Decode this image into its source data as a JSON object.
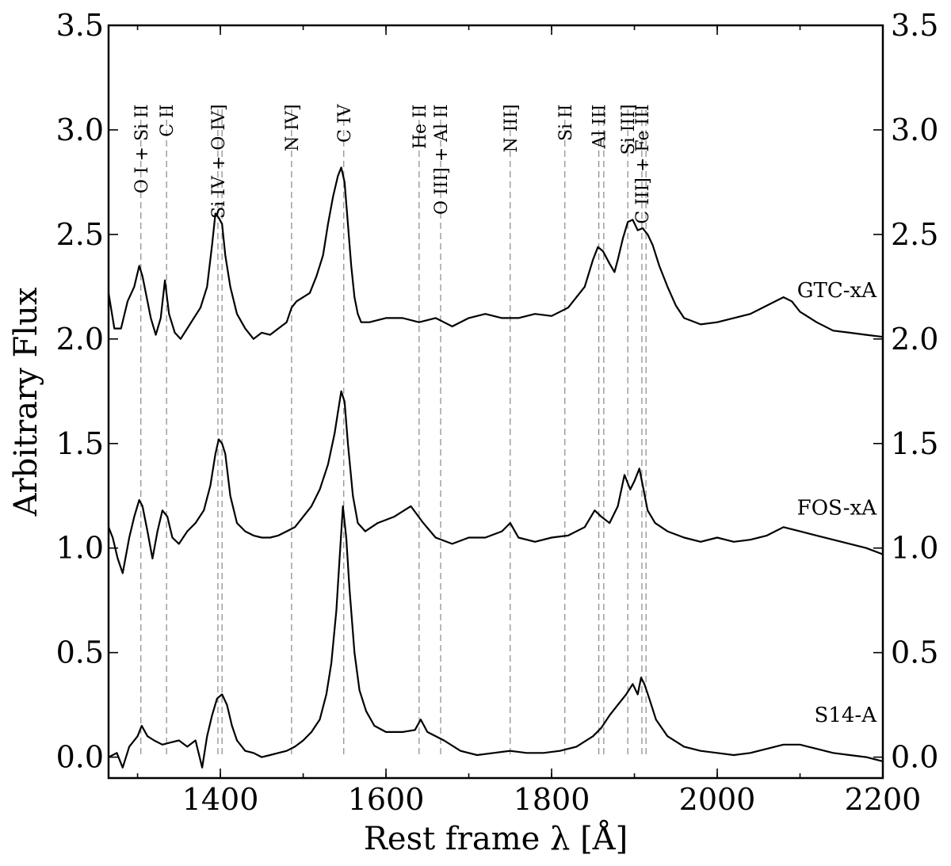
{
  "chart_data": {
    "type": "line",
    "xlabel": "Rest frame λ [Å]",
    "ylabel": "Arbitrary Flux",
    "xlim": [
      1265,
      2200
    ],
    "ylim": [
      -0.1,
      3.5
    ],
    "x_ticks": [
      1400,
      1600,
      1800,
      2000,
      2200
    ],
    "x_tick_labels": [
      "1400",
      "1600",
      "1800",
      "2000",
      "2200"
    ],
    "y_ticks": [
      0.0,
      0.5,
      1.0,
      1.5,
      2.0,
      2.5,
      3.0,
      3.5
    ],
    "y_tick_labels": [
      "0.0",
      "0.5",
      "1.0",
      "1.5",
      "2.0",
      "2.5",
      "3.0",
      "3.5"
    ],
    "y_ticks_right": true,
    "grid": false,
    "line_markers": [
      {
        "label": "O I + Si II",
        "x": 1304
      },
      {
        "label": "C II",
        "x": 1335
      },
      {
        "label": "Si IV + O IV]",
        "x": 1397
      },
      {
        "label": "",
        "x": 1402
      },
      {
        "label": "N IV]",
        "x": 1486
      },
      {
        "label": "C IV",
        "x": 1549
      },
      {
        "label": "He II",
        "x": 1640
      },
      {
        "label": "O III] + Al II",
        "x": 1666
      },
      {
        "label": "N III]",
        "x": 1750
      },
      {
        "label": "Si II",
        "x": 1816
      },
      {
        "label": "Al III",
        "x": 1857
      },
      {
        "label": "",
        "x": 1863
      },
      {
        "label": "Si III]",
        "x": 1892
      },
      {
        "label": "C III] + Fe III",
        "x": 1909
      },
      {
        "label": "",
        "x": 1914
      }
    ],
    "series": [
      {
        "name": "GTC-xA",
        "x": [
          1265,
          1272,
          1280,
          1288,
          1296,
          1302,
          1306,
          1310,
          1316,
          1322,
          1328,
          1333,
          1338,
          1345,
          1352,
          1360,
          1368,
          1376,
          1384,
          1390,
          1394,
          1398,
          1402,
          1406,
          1412,
          1420,
          1430,
          1440,
          1450,
          1460,
          1470,
          1480,
          1486,
          1492,
          1500,
          1508,
          1516,
          1524,
          1530,
          1536,
          1542,
          1546,
          1550,
          1554,
          1558,
          1562,
          1566,
          1570,
          1580,
          1600,
          1620,
          1640,
          1660,
          1670,
          1680,
          1700,
          1720,
          1740,
          1760,
          1780,
          1800,
          1820,
          1840,
          1850,
          1856,
          1862,
          1870,
          1876,
          1880,
          1886,
          1892,
          1898,
          1904,
          1910,
          1916,
          1922,
          1930,
          1940,
          1950,
          1960,
          1980,
          2000,
          2020,
          2040,
          2060,
          2080,
          2090,
          2100,
          2120,
          2140,
          2160,
          2180,
          2200
        ],
        "y": [
          2.22,
          2.05,
          2.05,
          2.18,
          2.25,
          2.35,
          2.3,
          2.22,
          2.1,
          2.02,
          2.1,
          2.28,
          2.12,
          2.03,
          2.0,
          2.05,
          2.1,
          2.15,
          2.25,
          2.45,
          2.6,
          2.58,
          2.55,
          2.4,
          2.25,
          2.12,
          2.05,
          2.0,
          2.03,
          2.02,
          2.05,
          2.08,
          2.15,
          2.18,
          2.2,
          2.22,
          2.3,
          2.4,
          2.55,
          2.68,
          2.78,
          2.82,
          2.75,
          2.55,
          2.35,
          2.2,
          2.12,
          2.08,
          2.08,
          2.1,
          2.1,
          2.08,
          2.1,
          2.08,
          2.06,
          2.1,
          2.12,
          2.1,
          2.1,
          2.12,
          2.11,
          2.15,
          2.25,
          2.38,
          2.44,
          2.42,
          2.36,
          2.32,
          2.38,
          2.48,
          2.56,
          2.57,
          2.52,
          2.53,
          2.5,
          2.45,
          2.35,
          2.25,
          2.16,
          2.1,
          2.07,
          2.08,
          2.1,
          2.12,
          2.16,
          2.2,
          2.18,
          2.13,
          2.08,
          2.04,
          2.03,
          2.02,
          2.01
        ]
      },
      {
        "name": "FOS-xA",
        "x": [
          1265,
          1270,
          1276,
          1282,
          1290,
          1296,
          1302,
          1306,
          1312,
          1318,
          1324,
          1330,
          1336,
          1342,
          1350,
          1360,
          1370,
          1380,
          1388,
          1394,
          1398,
          1402,
          1406,
          1412,
          1420,
          1430,
          1440,
          1450,
          1460,
          1470,
          1480,
          1490,
          1500,
          1510,
          1520,
          1530,
          1538,
          1542,
          1546,
          1550,
          1554,
          1560,
          1566,
          1575,
          1590,
          1610,
          1630,
          1645,
          1660,
          1680,
          1700,
          1720,
          1740,
          1750,
          1760,
          1780,
          1800,
          1820,
          1840,
          1852,
          1860,
          1870,
          1880,
          1888,
          1895,
          1900,
          1906,
          1910,
          1916,
          1925,
          1940,
          1960,
          1980,
          2000,
          2020,
          2040,
          2060,
          2080,
          2100,
          2120,
          2140,
          2160,
          2180,
          2200
        ],
        "y": [
          1.1,
          1.05,
          0.95,
          0.88,
          1.05,
          1.15,
          1.23,
          1.2,
          1.08,
          0.95,
          1.08,
          1.18,
          1.15,
          1.05,
          1.02,
          1.08,
          1.12,
          1.18,
          1.3,
          1.45,
          1.52,
          1.5,
          1.45,
          1.25,
          1.12,
          1.08,
          1.06,
          1.05,
          1.05,
          1.06,
          1.08,
          1.1,
          1.15,
          1.2,
          1.28,
          1.4,
          1.55,
          1.65,
          1.75,
          1.7,
          1.5,
          1.25,
          1.12,
          1.08,
          1.12,
          1.15,
          1.2,
          1.12,
          1.05,
          1.02,
          1.05,
          1.05,
          1.08,
          1.12,
          1.05,
          1.03,
          1.05,
          1.06,
          1.1,
          1.18,
          1.15,
          1.12,
          1.2,
          1.35,
          1.28,
          1.32,
          1.38,
          1.3,
          1.18,
          1.12,
          1.08,
          1.05,
          1.03,
          1.05,
          1.03,
          1.04,
          1.06,
          1.1,
          1.08,
          1.06,
          1.04,
          1.02,
          1.0,
          0.97
        ]
      },
      {
        "name": "S14-A",
        "x": [
          1265,
          1275,
          1282,
          1290,
          1300,
          1305,
          1312,
          1320,
          1330,
          1340,
          1350,
          1360,
          1370,
          1378,
          1384,
          1390,
          1396,
          1402,
          1408,
          1414,
          1420,
          1430,
          1440,
          1450,
          1460,
          1470,
          1480,
          1490,
          1500,
          1510,
          1520,
          1528,
          1534,
          1540,
          1544,
          1548,
          1552,
          1556,
          1562,
          1568,
          1576,
          1586,
          1600,
          1620,
          1635,
          1642,
          1650,
          1670,
          1690,
          1710,
          1730,
          1750,
          1770,
          1790,
          1810,
          1830,
          1850,
          1860,
          1870,
          1880,
          1890,
          1898,
          1904,
          1908,
          1912,
          1918,
          1926,
          1940,
          1960,
          1980,
          2000,
          2020,
          2040,
          2060,
          2080,
          2100,
          2120,
          2140,
          2160,
          2180,
          2200
        ],
        "y": [
          0.0,
          0.02,
          -0.05,
          0.05,
          0.1,
          0.15,
          0.1,
          0.08,
          0.06,
          0.07,
          0.08,
          0.05,
          0.08,
          -0.05,
          0.1,
          0.2,
          0.28,
          0.3,
          0.25,
          0.15,
          0.08,
          0.03,
          0.02,
          0.0,
          0.01,
          0.02,
          0.03,
          0.05,
          0.08,
          0.12,
          0.18,
          0.3,
          0.45,
          0.7,
          0.95,
          1.2,
          1.05,
          0.8,
          0.5,
          0.32,
          0.22,
          0.15,
          0.12,
          0.12,
          0.13,
          0.18,
          0.12,
          0.08,
          0.03,
          0.01,
          0.02,
          0.03,
          0.02,
          0.02,
          0.03,
          0.05,
          0.1,
          0.14,
          0.2,
          0.25,
          0.3,
          0.35,
          0.3,
          0.38,
          0.35,
          0.28,
          0.18,
          0.1,
          0.05,
          0.03,
          0.02,
          0.01,
          0.02,
          0.04,
          0.06,
          0.06,
          0.04,
          0.02,
          0.01,
          0.0,
          -0.02
        ]
      }
    ]
  }
}
